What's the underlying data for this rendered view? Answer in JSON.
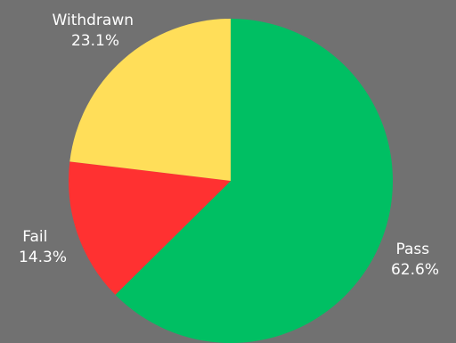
{
  "chart_data": {
    "type": "pie",
    "categories": [
      "Pass",
      "Fail",
      "Withdrawn"
    ],
    "values": [
      62.6,
      14.3,
      23.1
    ],
    "percent_labels": [
      "62.6%",
      "14.3%",
      "23.1%"
    ],
    "colors": [
      "#00bf63",
      "#ff3131",
      "#ffde59"
    ],
    "start_angle": "12 o'clock",
    "direction": "clockwise",
    "title": "",
    "legend": "none"
  },
  "background_color": "#717171"
}
